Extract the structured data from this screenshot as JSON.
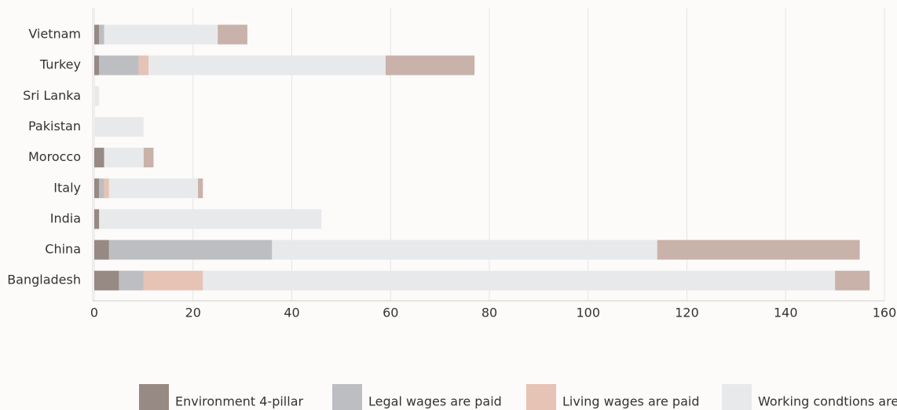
{
  "chart_data": {
    "type": "stacked-barh",
    "categories": [
      "Vietnam",
      "Turkey",
      "Sri Lanka",
      "Pakistan",
      "Morocco",
      "Italy",
      "India",
      "China",
      "Bangladesh"
    ],
    "series": [
      {
        "name": "Environment 4-pillar",
        "color": "#978983",
        "values": [
          1,
          1,
          0,
          0,
          2,
          1,
          1,
          3,
          5
        ]
      },
      {
        "name": "Legal wages are paid",
        "color": "#bdbec1",
        "values": [
          1,
          8,
          0,
          0,
          0,
          1,
          0,
          33,
          5
        ]
      },
      {
        "name": "Living wages are paid",
        "color": "#e6c3b5",
        "values": [
          0,
          2,
          0,
          0,
          0,
          1,
          0,
          0,
          12
        ]
      },
      {
        "name": "Working condtions are",
        "color": "#e8e9eb",
        "values": [
          23,
          48,
          1,
          10,
          8,
          18,
          45,
          78,
          128
        ]
      },
      {
        "color": "#c8b2a9",
        "values": [
          6,
          18,
          0,
          0,
          2,
          1,
          0,
          41,
          7
        ]
      }
    ],
    "xlim": [
      0,
      160
    ],
    "xticks": [
      0,
      20,
      40,
      60,
      80,
      100,
      120,
      140,
      160
    ],
    "grid": true
  }
}
